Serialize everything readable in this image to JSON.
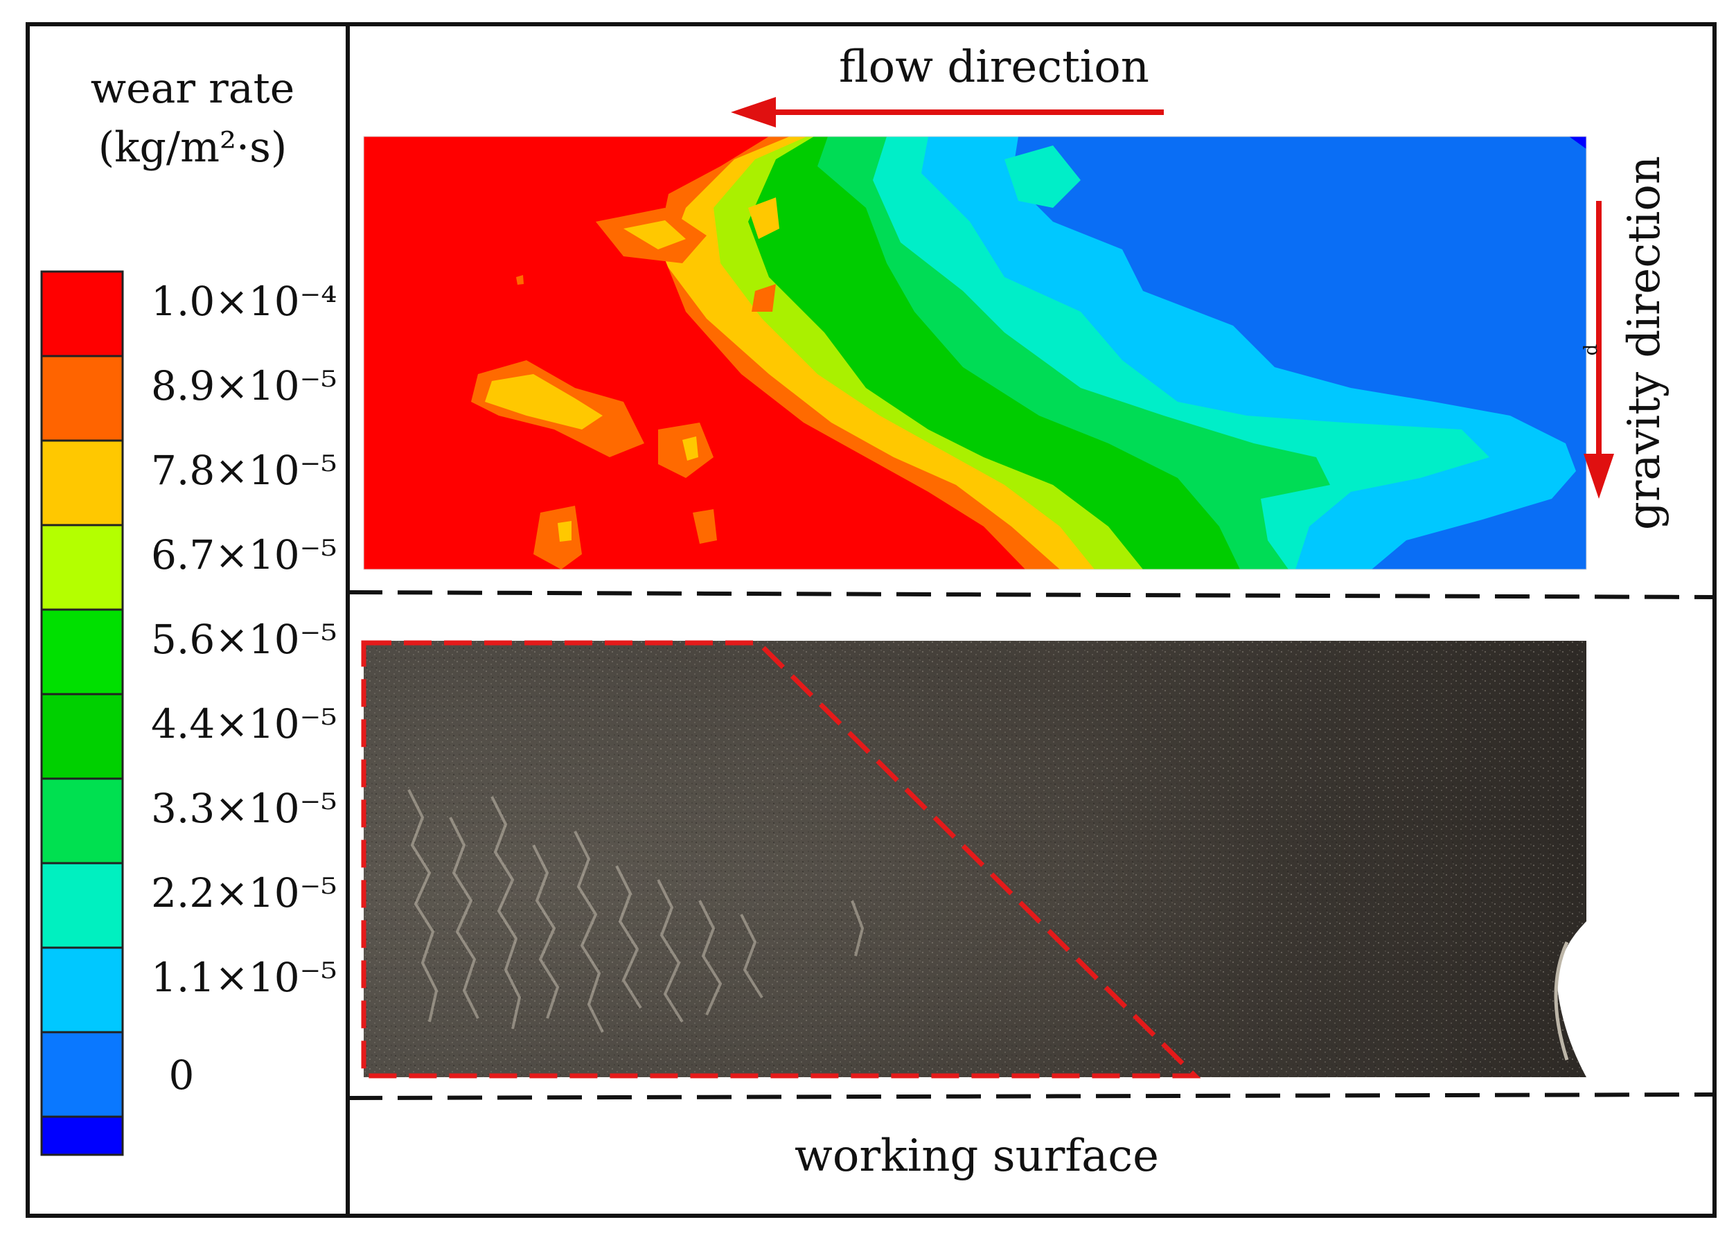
{
  "legend": {
    "title_line1": "wear rate",
    "title_line2": "(kg/m²·s)",
    "colors": [
      "#ff0000",
      "#ff6400",
      "#ffc800",
      "#b4ff00",
      "#00e000",
      "#00d000",
      "#00e050",
      "#00f0c0",
      "#00c8ff",
      "#0a78ff",
      "#0000ff"
    ],
    "tick_labels": [
      "1.0×10⁻⁴",
      "8.9×10⁻⁵",
      "7.8×10⁻⁵",
      "6.7×10⁻⁵",
      "5.6×10⁻⁵",
      "4.4×10⁻⁵",
      "3.3×10⁻⁵",
      "2.2×10⁻⁵",
      "1.1×10⁻⁵",
      "0"
    ]
  },
  "labels": {
    "flow_direction": "flow direction",
    "gravity_direction": "gravity direction",
    "working_surface": "working surface",
    "gravity_marker": "d"
  },
  "colors": {
    "arrow": "#e01010",
    "highlight_dash": "#e41a1a",
    "frame": "#111111"
  }
}
